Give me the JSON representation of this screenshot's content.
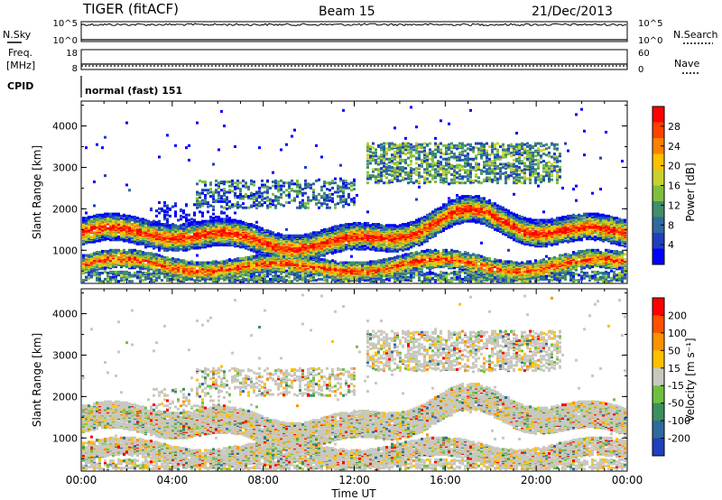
{
  "header": {
    "radar": "TIGER (fitACF)",
    "beam": "Beam 15",
    "date": "21/Dec/2013"
  },
  "top_panels": {
    "nsky_label": "N.Sky",
    "nsky_ticks": [
      "10^5",
      "10^0"
    ],
    "nsearch_label": "N.Search",
    "nsearch_ticks": [
      "10^5",
      "10^0"
    ],
    "freq_label_1": "Freq.",
    "freq_label_2": "[MHz]",
    "freq_ticks": [
      "18",
      "8"
    ],
    "nave_label": "Nave",
    "nave_ticks": [
      "60",
      "0"
    ],
    "cpid_label": "CPID",
    "cpid_value": "normal (fast) 151"
  },
  "chart_data": [
    {
      "type": "heatmap",
      "name": "power",
      "ylabel": "Slant Range [km]",
      "ylim": [
        200,
        4600
      ],
      "yticks": [
        "4000",
        "3000",
        "2000",
        "1000"
      ],
      "xticks": [
        "00:00",
        "04:00",
        "08:00",
        "12:00",
        "16:00",
        "20:00",
        "00:00"
      ],
      "xlim_hours": [
        0,
        24
      ],
      "colorbar": {
        "label": "Power [dB]",
        "ticks": [
          "28",
          "24",
          "20",
          "16",
          "12",
          "8",
          "4"
        ],
        "colors": [
          "#0000ff",
          "#1f3fbf",
          "#2e6a9e",
          "#3f8f6a",
          "#7fbf3f",
          "#c8d030",
          "#ffc000",
          "#ff8000",
          "#ff4000",
          "#ff0000"
        ]
      }
    },
    {
      "type": "heatmap",
      "name": "velocity",
      "ylabel": "Slant Range [km]",
      "ylim": [
        200,
        4600
      ],
      "yticks": [
        "4000",
        "3000",
        "2000",
        "1000"
      ],
      "xticks": [
        "00:00",
        "04:00",
        "08:00",
        "12:00",
        "16:00",
        "20:00",
        "00:00"
      ],
      "xlim_hours": [
        0,
        24
      ],
      "xlabel": "Time UT",
      "colorbar": {
        "label": "Velocity [m s⁻¹]",
        "ticks": [
          "200",
          "100",
          "50",
          "15",
          "-15",
          "-50",
          "-100",
          "-200"
        ],
        "colors": [
          "#1f3fbf",
          "#2e6a9e",
          "#3a9060",
          "#70c040",
          "#c8c8c0",
          "#ffc000",
          "#ff9000",
          "#ff5000",
          "#ff0000"
        ]
      }
    }
  ]
}
